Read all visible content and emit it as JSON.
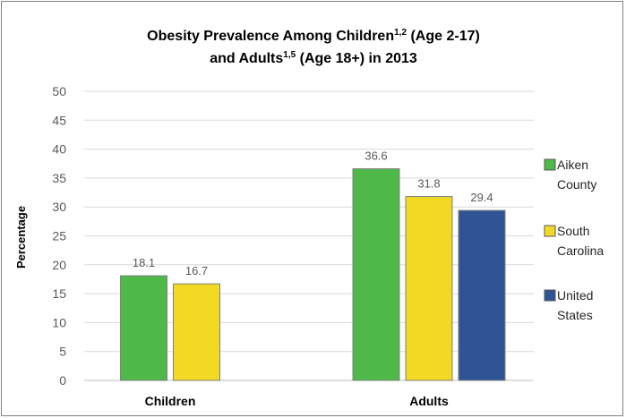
{
  "chart_data": {
    "type": "bar",
    "title": {
      "line1_pre": "Obesity Prevalence Among Children",
      "line1_sup": "1,2",
      "line1_post": " (Age 2-17)",
      "line2_pre": "and Adults",
      "line2_sup": "1,5",
      "line2_post": " (Age 18+) in 2013"
    },
    "ylabel": "Percentage",
    "xlabel": "",
    "ylim": [
      0,
      50
    ],
    "yticks": [
      0,
      5,
      10,
      15,
      20,
      25,
      30,
      35,
      40,
      45,
      50
    ],
    "grid": true,
    "legend_position": "right",
    "categories": [
      "Children",
      "Adults"
    ],
    "series": [
      {
        "name_line1": "Aiken",
        "name_line2": "County",
        "color": "#4eb848",
        "values": [
          18.1,
          36.6
        ]
      },
      {
        "name_line1": "South",
        "name_line2": "Carolina",
        "color": "#f2d923",
        "values": [
          16.7,
          31.8
        ]
      },
      {
        "name_line1": "United",
        "name_line2": "States",
        "color": "#2f5496",
        "values": [
          null,
          29.4
        ]
      }
    ]
  }
}
